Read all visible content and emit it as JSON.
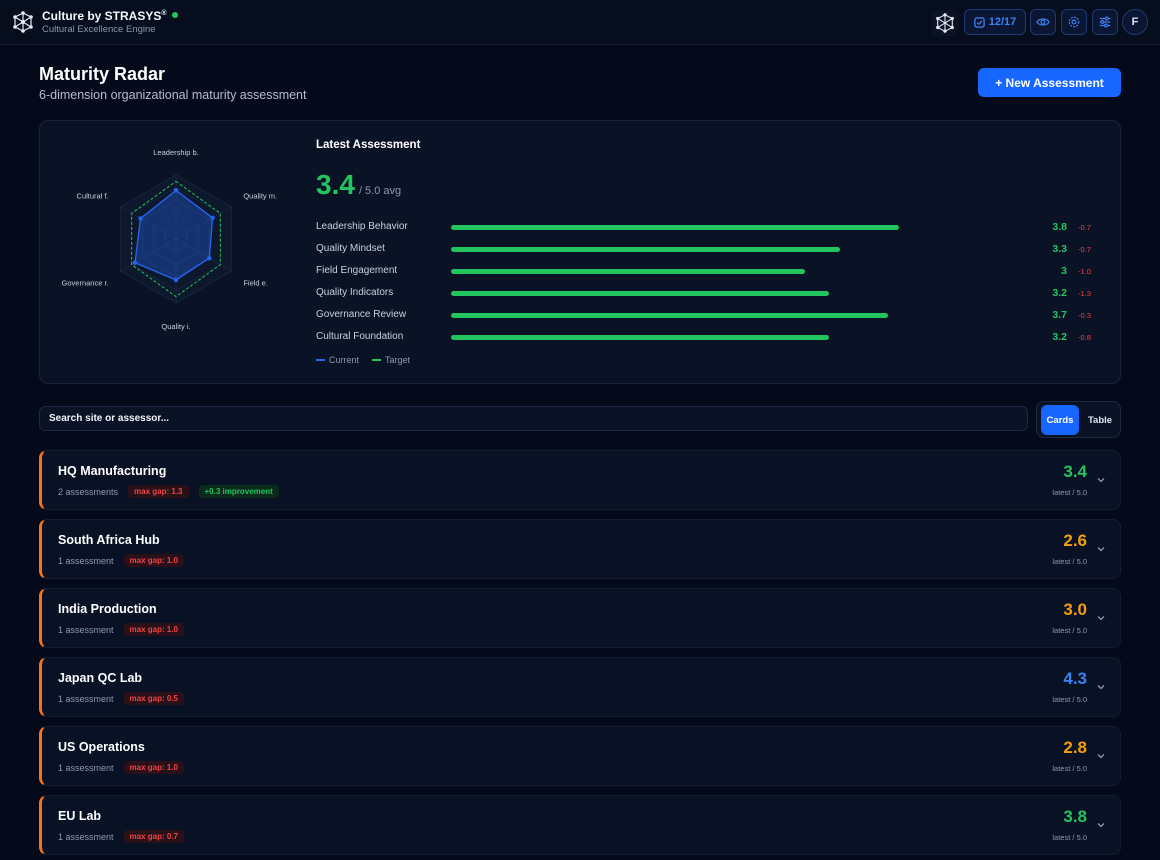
{
  "app": {
    "title": "Culture by STRASYS",
    "reg": "®",
    "subtitle": "Cultural Excellence Engine",
    "task_count": "12/17",
    "avatar": "F"
  },
  "page": {
    "title": "Maturity Radar",
    "subtitle": "6-dimension organizational maturity assessment",
    "new_button": "+ New Assessment"
  },
  "summary": {
    "title": "Latest Assessment",
    "avg": "3.4",
    "avg_suffix": "/ 5.0 avg",
    "radar_labels": [
      "Leadership b.",
      "Quality m.",
      "Field e.",
      "Quality i.",
      "Governance r.",
      "Cultural f."
    ],
    "dimensions": [
      {
        "label": "Leadership Behavior",
        "score": "3.8",
        "value": 3.8,
        "gap": "-0.7"
      },
      {
        "label": "Quality Mindset",
        "score": "3.3",
        "value": 3.3,
        "gap": "-0.7"
      },
      {
        "label": "Field Engagement",
        "score": "3",
        "value": 3.0,
        "gap": "-1.0"
      },
      {
        "label": "Quality Indicators",
        "score": "3.2",
        "value": 3.2,
        "gap": "-1.3"
      },
      {
        "label": "Governance Review",
        "score": "3.7",
        "value": 3.7,
        "gap": "-0.3"
      },
      {
        "label": "Cultural Foundation",
        "score": "3.2",
        "value": 3.2,
        "gap": "-0.8"
      }
    ],
    "target": [
      4.5,
      4.0,
      4.0,
      4.5,
      4.0,
      4.0
    ],
    "legend": {
      "current": "Current",
      "target": "Target"
    },
    "colors": {
      "current": "#2563eb",
      "target": "#22c55e"
    }
  },
  "controls": {
    "search_placeholder": "Search site or assessor...",
    "view_cards": "Cards",
    "view_table": "Table"
  },
  "sites": [
    {
      "name": "HQ Manufacturing",
      "assessments": "2 assessments",
      "gap": "max gap: 1.3",
      "improvement": "+0.3 improvement",
      "score": "3.4",
      "latest": "latest / 5.0",
      "color": "#22c55e"
    },
    {
      "name": "South Africa Hub",
      "assessments": "1 assessment",
      "gap": "max gap: 1.0",
      "improvement": "",
      "score": "2.6",
      "latest": "latest / 5.0",
      "color": "#f59e0b"
    },
    {
      "name": "India Production",
      "assessments": "1 assessment",
      "gap": "max gap: 1.0",
      "improvement": "",
      "score": "3.0",
      "latest": "latest / 5.0",
      "color": "#f59e0b"
    },
    {
      "name": "Japan QC Lab",
      "assessments": "1 assessment",
      "gap": "max gap: 0.5",
      "improvement": "",
      "score": "4.3",
      "latest": "latest / 5.0",
      "color": "#3b82f6"
    },
    {
      "name": "US Operations",
      "assessments": "1 assessment",
      "gap": "max gap: 1.0",
      "improvement": "",
      "score": "2.8",
      "latest": "latest / 5.0",
      "color": "#f59e0b"
    },
    {
      "name": "EU Lab",
      "assessments": "1 assessment",
      "gap": "max gap: 0.7",
      "improvement": "",
      "score": "3.8",
      "latest": "latest / 5.0",
      "color": "#22c55e"
    }
  ]
}
